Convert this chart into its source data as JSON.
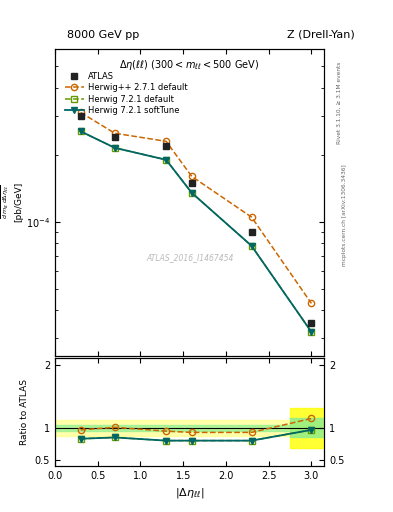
{
  "title_left": "8000 GeV pp",
  "title_right": "Z (Drell-Yan)",
  "annotation": "ATLAS_2016_I1467454",
  "right_label": "Rivet 3.1.10, ≥ 3.1M events",
  "arxiv_label": "mcplots.cern.ch [arXiv:1306.3436]",
  "subplot_title": "Δη(ll) (300 < m_{ll} < 500 GeV)",
  "ylabel_ratio": "Ratio to ATLAS",
  "xlabel": "|#Delta#eta_{ellell}|",
  "x_data": [
    0.3,
    0.7,
    1.3,
    1.6,
    2.3,
    3.0
  ],
  "atlas_y": [
    0.0003,
    0.00024,
    0.00022,
    0.00015,
    9e-05,
    3.5e-05
  ],
  "herwig_pp_y": [
    0.00031,
    0.00025,
    0.00023,
    0.00016,
    0.000105,
    4.3e-05
  ],
  "herwig_721_def_y": [
    0.000255,
    0.000215,
    0.00019,
    0.000135,
    7.8e-05,
    3.2e-05
  ],
  "herwig_721_soft_y": [
    0.000255,
    0.000215,
    0.00019,
    0.000135,
    7.8e-05,
    3.2e-05
  ],
  "ratio_herwig_pp": [
    0.97,
    1.01,
    0.95,
    0.93,
    0.93,
    1.15
  ],
  "ratio_herwig_721_def": [
    0.83,
    0.85,
    0.8,
    0.8,
    0.8,
    0.97
  ],
  "ratio_herwig_721_soft": [
    0.83,
    0.85,
    0.8,
    0.8,
    0.8,
    0.97
  ],
  "atlas_color": "#222222",
  "herwig_pp_color": "#cc6600",
  "herwig_721_def_color": "#669900",
  "herwig_721_soft_color": "#006666",
  "ylim_main": [
    2.5e-05,
    0.0006
  ],
  "ylim_ratio": [
    0.4,
    2.1
  ],
  "xlim": [
    0.0,
    3.15
  ],
  "ratio_yticks": [
    0.5,
    1.0,
    2.0
  ]
}
